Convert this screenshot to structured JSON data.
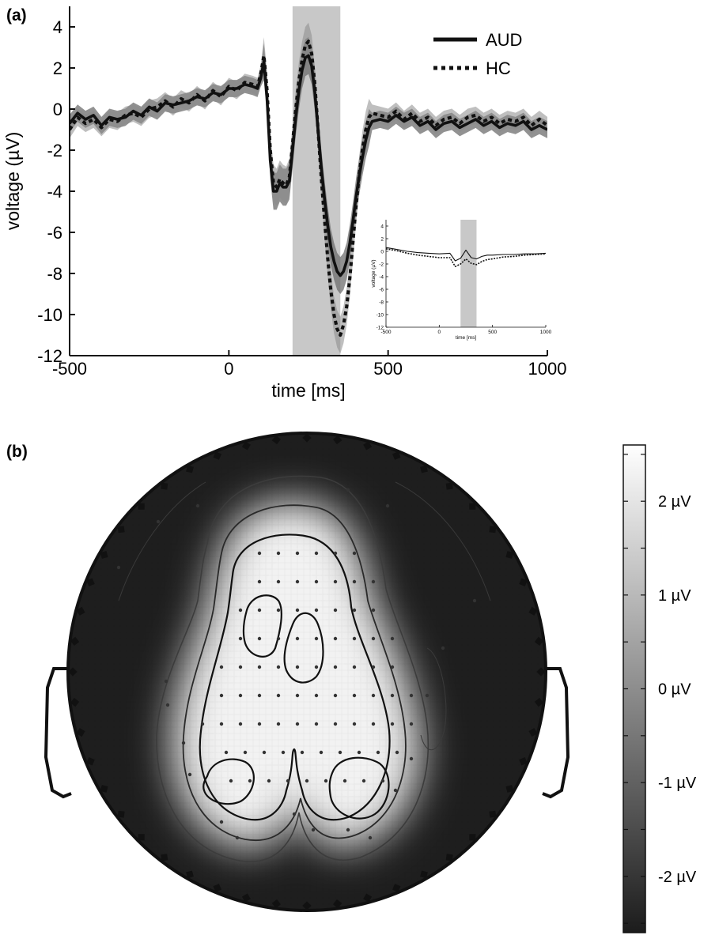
{
  "figure": {
    "panel_a_label": "(a)",
    "panel_b_label": "(b)"
  },
  "chart_data": [
    {
      "type": "line",
      "title": "",
      "xlabel": "time [ms]",
      "ylabel": "voltage (µV)",
      "xlim": [
        -500,
        1000
      ],
      "ylim": [
        -12,
        5
      ],
      "xticks": [
        "-500",
        "0",
        "500",
        "1000"
      ],
      "yticks": [
        "4",
        "2",
        "0",
        "-2",
        "-4",
        "-6",
        "-8",
        "-10",
        "-12"
      ],
      "legend_position": "top-right",
      "highlight_window": [
        200,
        350
      ],
      "series": [
        {
          "name": "AUD",
          "style": "solid",
          "x": [
            -500,
            -475,
            -450,
            -425,
            -400,
            -375,
            -350,
            -325,
            -300,
            -275,
            -250,
            -225,
            -200,
            -175,
            -150,
            -125,
            -100,
            -75,
            -50,
            -25,
            0,
            25,
            50,
            75,
            90,
            100,
            110,
            120,
            130,
            140,
            150,
            160,
            170,
            180,
            190,
            200,
            210,
            220,
            230,
            240,
            250,
            260,
            270,
            280,
            290,
            300,
            310,
            320,
            330,
            340,
            350,
            360,
            370,
            380,
            390,
            400,
            410,
            420,
            430,
            440,
            450,
            475,
            500,
            525,
            550,
            575,
            600,
            625,
            650,
            675,
            700,
            725,
            750,
            775,
            800,
            825,
            850,
            875,
            900,
            925,
            950,
            975,
            1000
          ],
          "y": [
            -0.7,
            -0.2,
            -0.5,
            -0.3,
            -0.8,
            -0.4,
            -0.5,
            -0.4,
            -0.1,
            -0.3,
            0.1,
            -0.1,
            0.3,
            0.2,
            0.3,
            0.4,
            0.6,
            0.5,
            0.8,
            0.7,
            1.0,
            1.0,
            1.2,
            1.1,
            1.0,
            1.5,
            2.3,
            0.5,
            -2.5,
            -4.0,
            -4.0,
            -3.6,
            -3.8,
            -3.8,
            -3.5,
            -2.0,
            -0.4,
            0.9,
            1.9,
            2.5,
            2.6,
            2.1,
            0.8,
            -1.0,
            -2.8,
            -4.3,
            -5.6,
            -6.7,
            -7.4,
            -7.9,
            -8.1,
            -7.9,
            -7.4,
            -6.5,
            -5.4,
            -4.2,
            -3.2,
            -2.3,
            -1.5,
            -0.9,
            -0.6,
            -0.5,
            -0.6,
            -0.3,
            -0.6,
            -0.4,
            -0.8,
            -0.6,
            -1.0,
            -0.7,
            -0.6,
            -0.9,
            -0.7,
            -0.5,
            -0.8,
            -0.6,
            -0.9,
            -0.7,
            -0.8,
            -0.6,
            -1.0,
            -0.8,
            -1.0
          ]
        },
        {
          "name": "HC",
          "style": "dotted",
          "x": [
            -500,
            -475,
            -450,
            -425,
            -400,
            -375,
            -350,
            -325,
            -300,
            -275,
            -250,
            -225,
            -200,
            -175,
            -150,
            -125,
            -100,
            -75,
            -50,
            -25,
            0,
            25,
            50,
            75,
            90,
            100,
            110,
            120,
            130,
            140,
            150,
            160,
            170,
            180,
            190,
            200,
            210,
            220,
            230,
            240,
            250,
            260,
            270,
            280,
            290,
            300,
            310,
            320,
            330,
            340,
            350,
            360,
            370,
            380,
            390,
            400,
            410,
            420,
            430,
            440,
            450,
            475,
            500,
            525,
            550,
            575,
            600,
            625,
            650,
            675,
            700,
            725,
            750,
            775,
            800,
            825,
            850,
            875,
            900,
            925,
            950,
            975,
            1000
          ],
          "y": [
            -1.0,
            -0.4,
            -0.7,
            -0.5,
            -0.9,
            -0.5,
            -0.6,
            -0.3,
            -0.2,
            -0.4,
            0.0,
            0.1,
            0.4,
            0.1,
            0.5,
            0.3,
            0.7,
            0.4,
            0.9,
            0.6,
            1.1,
            0.9,
            1.3,
            1.2,
            1.1,
            1.7,
            2.6,
            0.9,
            -2.0,
            -3.6,
            -3.8,
            -3.4,
            -3.6,
            -3.7,
            -3.3,
            -1.7,
            0.0,
            1.4,
            2.4,
            3.1,
            3.3,
            2.7,
            1.2,
            -1.0,
            -3.3,
            -5.3,
            -7.2,
            -8.8,
            -10.0,
            -10.7,
            -11.0,
            -10.5,
            -9.6,
            -8.2,
            -6.4,
            -4.6,
            -3.1,
            -1.9,
            -1.0,
            -0.4,
            -0.2,
            -0.3,
            -0.4,
            -0.1,
            -0.5,
            -0.2,
            -0.6,
            -0.4,
            -0.8,
            -0.5,
            -0.4,
            -0.7,
            -0.4,
            -0.3,
            -0.6,
            -0.4,
            -0.7,
            -0.5,
            -0.6,
            -0.4,
            -0.8,
            -0.5,
            -0.8
          ]
        }
      ]
    },
    {
      "type": "line",
      "title": "",
      "xlabel": "time [ms]",
      "ylabel": "voltage (µV)",
      "xlim": [
        -500,
        1000
      ],
      "ylim": [
        -12,
        5
      ],
      "xticks": [
        "-500",
        "0",
        "500",
        "1000"
      ],
      "yticks": [
        "4",
        "2",
        "0",
        "-2",
        "-4",
        "-6",
        "-8",
        "-10",
        "-12"
      ],
      "highlight_window": [
        200,
        350
      ],
      "series": [
        {
          "style": "solid",
          "x": [
            -500,
            -400,
            -300,
            -200,
            -100,
            0,
            100,
            150,
            200,
            250,
            300,
            350,
            400,
            450,
            500,
            600,
            700,
            800,
            900,
            1000
          ],
          "y": [
            0.6,
            0.3,
            0.0,
            -0.2,
            -0.3,
            -0.4,
            -0.3,
            -1.5,
            -1.1,
            0.2,
            -1.0,
            -1.2,
            -0.8,
            -0.6,
            -0.6,
            -0.5,
            -0.5,
            -0.4,
            -0.4,
            -0.3
          ]
        },
        {
          "style": "dotted",
          "x": [
            -500,
            -400,
            -300,
            -200,
            -100,
            0,
            100,
            150,
            200,
            250,
            300,
            350,
            400,
            450,
            500,
            600,
            700,
            800,
            900,
            1000
          ],
          "y": [
            0.4,
            0.1,
            -0.3,
            -0.6,
            -0.8,
            -1.0,
            -1.0,
            -2.4,
            -2.0,
            -1.2,
            -1.9,
            -2.1,
            -1.6,
            -1.3,
            -1.2,
            -0.9,
            -0.8,
            -0.6,
            -0.5,
            -0.4
          ]
        }
      ]
    },
    {
      "type": "heatmap",
      "title": "",
      "colorbar": {
        "ticks": [
          "2 µV",
          "1 µV",
          "0 µV",
          "-1 µV",
          "-2 µV"
        ],
        "tick_values": [
          2,
          1,
          0,
          -1,
          -2
        ],
        "range": [
          -2.6,
          2.6
        ],
        "low_color": "#1c1c1c",
        "high_color": "#ffffff"
      }
    }
  ]
}
